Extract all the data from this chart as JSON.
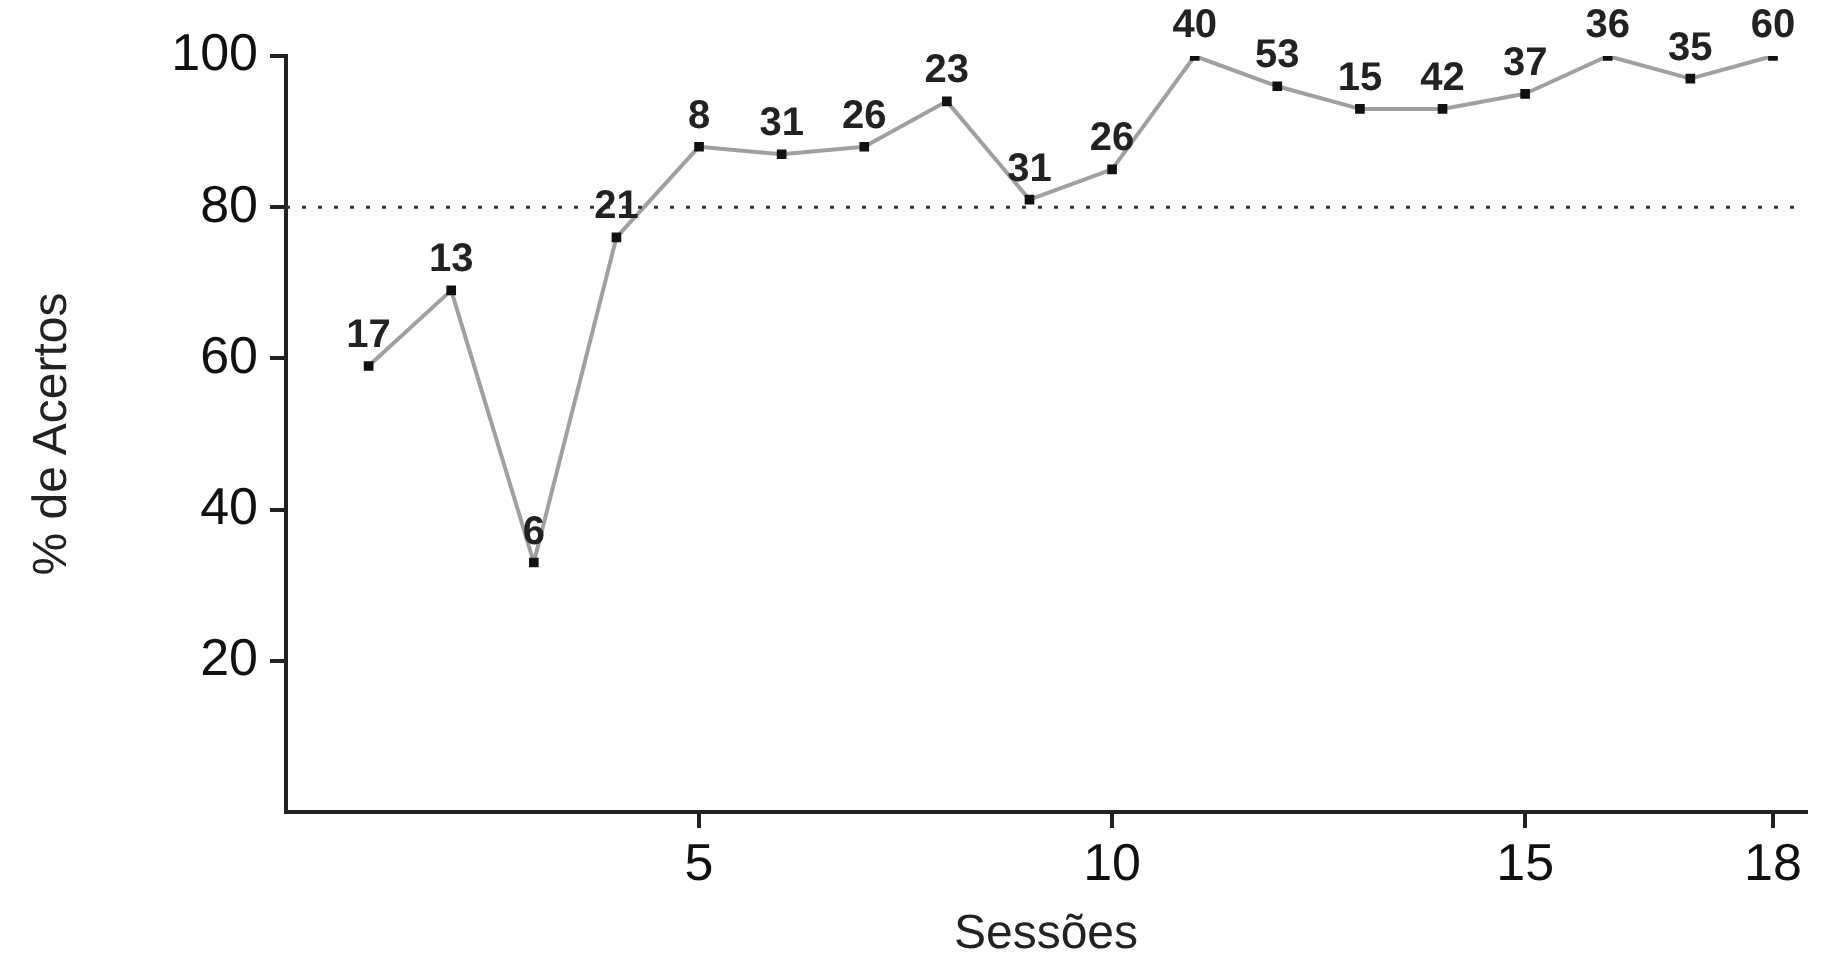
{
  "chart_data": {
    "type": "line",
    "xlabel": "Sessões",
    "ylabel": "% de Acertos",
    "x": [
      1,
      2,
      3,
      4,
      5,
      6,
      7,
      8,
      9,
      10,
      11,
      12,
      13,
      14,
      15,
      16,
      17,
      18
    ],
    "series": [
      {
        "color": "#a0a0a0",
        "values": [
          59,
          69,
          33,
          76,
          88,
          87,
          88,
          94,
          81,
          85,
          100,
          96,
          93,
          93,
          95,
          100,
          97,
          100
        ]
      }
    ],
    "xlim": [
      0,
      18.4
    ],
    "xticks": [
      5,
      10,
      15,
      18
    ],
    "ylim": [
      0,
      100
    ],
    "yticks": [
      20,
      40,
      60,
      80,
      100
    ],
    "grid": false,
    "legend": false,
    "marker": "square",
    "line_style": "solid",
    "ref_lines": [
      {
        "axis": "y",
        "value": 80,
        "line_style": "dotted",
        "color": "#333333"
      }
    ],
    "annotations": [
      {
        "text": "17",
        "x": 1,
        "y": 59
      },
      {
        "text": "13",
        "x": 2,
        "y": 69
      },
      {
        "text": "6",
        "x": 3,
        "y": 33
      },
      {
        "text": "21",
        "x": 4,
        "y": 76
      },
      {
        "text": "8",
        "x": 5,
        "y": 88
      },
      {
        "text": "31",
        "x": 6,
        "y": 87
      },
      {
        "text": "26",
        "x": 7,
        "y": 88
      },
      {
        "text": "23",
        "x": 8,
        "y": 94
      },
      {
        "text": "31",
        "x": 9,
        "y": 81
      },
      {
        "text": "26",
        "x": 10,
        "y": 85
      },
      {
        "text": "40",
        "x": 11,
        "y": 100
      },
      {
        "text": "53",
        "x": 12,
        "y": 96
      },
      {
        "text": "15",
        "x": 13,
        "y": 93
      },
      {
        "text": "42",
        "x": 14,
        "y": 93
      },
      {
        "text": "37",
        "x": 15,
        "y": 95
      },
      {
        "text": "36",
        "x": 16,
        "y": 100
      },
      {
        "text": "35",
        "x": 17,
        "y": 97
      },
      {
        "text": "60",
        "x": 18,
        "y": 100
      }
    ]
  }
}
